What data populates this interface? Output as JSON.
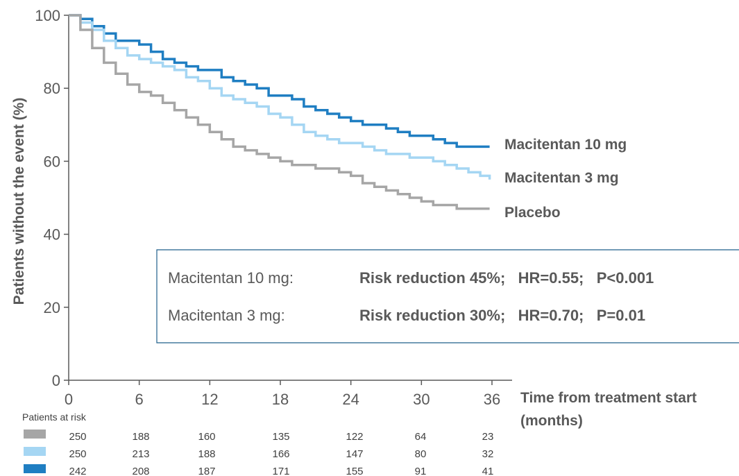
{
  "chart_data": {
    "type": "line",
    "ylabel": "Patients without the event (%)",
    "xlabel_line1": "Time from treatment start",
    "xlabel_line2": "(months)",
    "xlim": [
      0,
      36
    ],
    "ylim": [
      0,
      100
    ],
    "x_ticks": [
      "0",
      "6",
      "12",
      "18",
      "24",
      "30",
      "36"
    ],
    "y_ticks": [
      "0",
      "20",
      "40",
      "60",
      "80",
      "100"
    ],
    "grid": false,
    "series": [
      {
        "name": "Macitentan 10 mg",
        "color": "#1f7ec2",
        "points": [
          [
            0,
            100
          ],
          [
            1,
            99
          ],
          [
            2,
            97
          ],
          [
            3,
            95
          ],
          [
            4,
            93
          ],
          [
            6,
            92
          ],
          [
            7,
            90
          ],
          [
            8,
            88
          ],
          [
            9,
            87
          ],
          [
            10,
            86
          ],
          [
            11,
            85
          ],
          [
            12,
            85
          ],
          [
            13,
            83
          ],
          [
            14,
            82
          ],
          [
            15,
            81
          ],
          [
            16,
            80
          ],
          [
            17,
            78
          ],
          [
            18,
            78
          ],
          [
            19,
            77
          ],
          [
            20,
            75
          ],
          [
            21,
            74
          ],
          [
            22,
            73
          ],
          [
            23,
            72
          ],
          [
            24,
            71
          ],
          [
            25,
            70
          ],
          [
            26,
            70
          ],
          [
            27,
            69
          ],
          [
            28,
            68
          ],
          [
            29,
            67
          ],
          [
            30,
            67
          ],
          [
            31,
            66
          ],
          [
            32,
            65
          ],
          [
            33,
            64
          ],
          [
            34,
            64
          ],
          [
            35,
            64
          ],
          [
            35.8,
            64
          ]
        ]
      },
      {
        "name": "Macitentan 3 mg",
        "color": "#a5d6f3",
        "points": [
          [
            0,
            100
          ],
          [
            1,
            98
          ],
          [
            2,
            96
          ],
          [
            3,
            93
          ],
          [
            4,
            91
          ],
          [
            5,
            89
          ],
          [
            6,
            88
          ],
          [
            7,
            87
          ],
          [
            8,
            86
          ],
          [
            9,
            85
          ],
          [
            10,
            83
          ],
          [
            11,
            82
          ],
          [
            12,
            80
          ],
          [
            13,
            78
          ],
          [
            14,
            77
          ],
          [
            15,
            76
          ],
          [
            16,
            75
          ],
          [
            17,
            73
          ],
          [
            18,
            72
          ],
          [
            19,
            70
          ],
          [
            20,
            68
          ],
          [
            21,
            67
          ],
          [
            22,
            66
          ],
          [
            23,
            65
          ],
          [
            24,
            65
          ],
          [
            25,
            64
          ],
          [
            26,
            63
          ],
          [
            27,
            62
          ],
          [
            28,
            62
          ],
          [
            29,
            61
          ],
          [
            30,
            61
          ],
          [
            31,
            60
          ],
          [
            32,
            59
          ],
          [
            33,
            58
          ],
          [
            34,
            57
          ],
          [
            35,
            56
          ],
          [
            35.8,
            55
          ]
        ]
      },
      {
        "name": "Placebo",
        "color": "#a6a6a6",
        "points": [
          [
            0,
            100
          ],
          [
            1,
            96
          ],
          [
            2,
            91
          ],
          [
            3,
            87
          ],
          [
            4,
            84
          ],
          [
            5,
            81
          ],
          [
            6,
            79
          ],
          [
            7,
            78
          ],
          [
            8,
            76
          ],
          [
            9,
            74
          ],
          [
            10,
            72
          ],
          [
            11,
            70
          ],
          [
            12,
            68
          ],
          [
            13,
            66
          ],
          [
            14,
            64
          ],
          [
            15,
            63
          ],
          [
            16,
            62
          ],
          [
            17,
            61
          ],
          [
            18,
            60
          ],
          [
            19,
            59
          ],
          [
            20,
            59
          ],
          [
            21,
            58
          ],
          [
            22,
            58
          ],
          [
            23,
            57
          ],
          [
            24,
            56
          ],
          [
            25,
            54
          ],
          [
            26,
            53
          ],
          [
            27,
            52
          ],
          [
            28,
            51
          ],
          [
            29,
            50
          ],
          [
            30,
            49
          ],
          [
            31,
            48
          ],
          [
            32,
            48
          ],
          [
            33,
            47
          ],
          [
            34,
            47
          ],
          [
            35,
            47
          ],
          [
            35.8,
            47
          ]
        ]
      }
    ],
    "legend": [
      "Macitentan 10 mg",
      "Macitentan 3 mg",
      "Placebo"
    ],
    "legend_placement": "right-of-line-ends"
  },
  "annotation_box": {
    "rows": [
      {
        "label": "Macitentan 10 mg:",
        "stats": "Risk reduction 45%;   HR=0.55;   P<0.001"
      },
      {
        "label": "Macitentan 3 mg:",
        "stats": "Risk reduction 30%;   HR=0.70;   P=0.01"
      }
    ]
  },
  "risk_table": {
    "title": "Patients at risk",
    "rows": [
      {
        "color": "#a6a6a6",
        "values": [
          "250",
          "188",
          "160",
          "135",
          "122",
          "64",
          "23"
        ]
      },
      {
        "color": "#a5d6f3",
        "values": [
          "250",
          "213",
          "188",
          "166",
          "147",
          "80",
          "32"
        ]
      },
      {
        "color": "#1f7ec2",
        "values": [
          "242",
          "208",
          "187",
          "171",
          "155",
          "91",
          "41"
        ]
      }
    ]
  }
}
